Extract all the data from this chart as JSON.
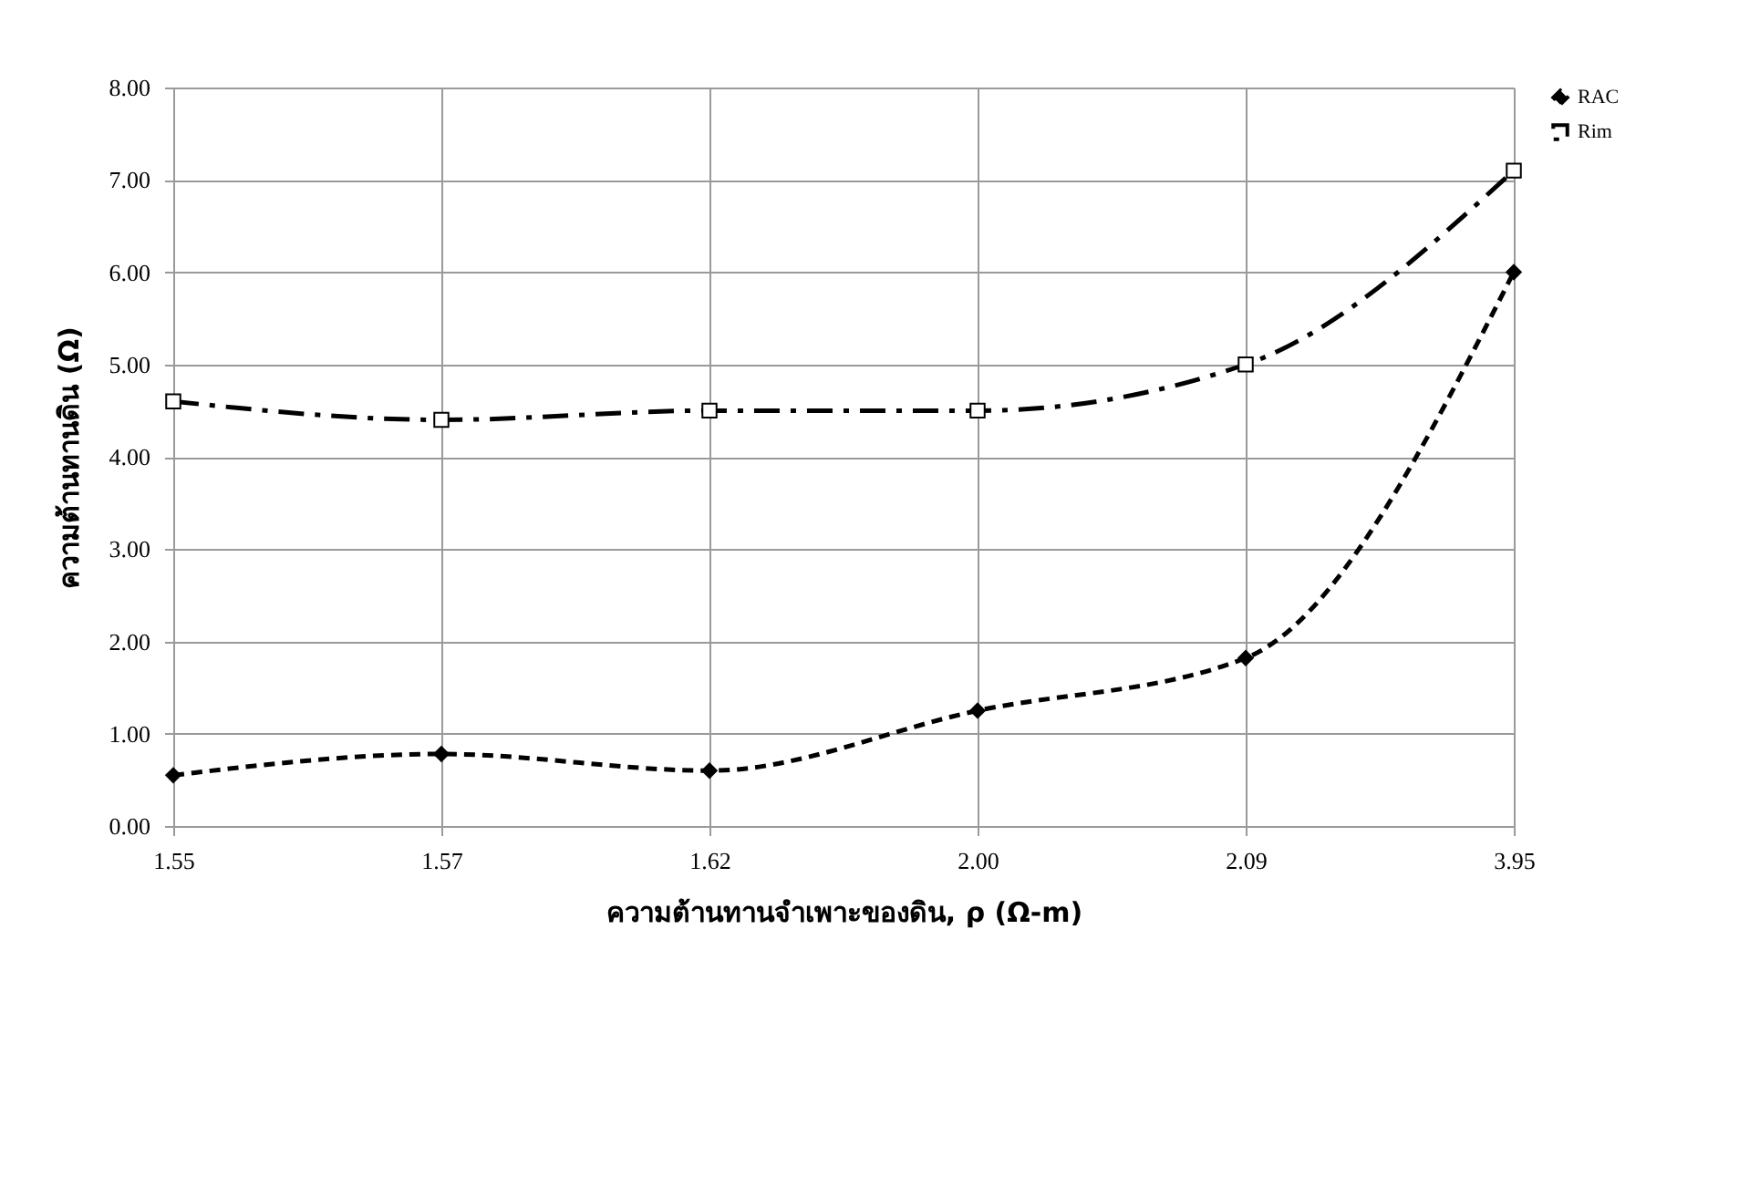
{
  "chart_data": {
    "type": "line",
    "xlabel": "ความต้านทานจำเพาะของดิน, ρ (Ω-m)",
    "ylabel": "ความต้านทานดิน (Ω)",
    "categories": [
      "1.55",
      "1.57",
      "1.62",
      "2.00",
      "2.09",
      "3.95"
    ],
    "series": [
      {
        "name": "RAC",
        "color": "#000000",
        "marker": "diamond",
        "line_style": "dashed",
        "values": [
          0.55,
          0.78,
          0.6,
          1.25,
          1.82,
          6.0
        ]
      },
      {
        "name": "Rim",
        "color": "#000000",
        "marker": "square",
        "line_style": "dashdot",
        "values": [
          4.6,
          4.4,
          4.5,
          4.5,
          5.0,
          7.1
        ]
      }
    ],
    "ylim": [
      0,
      8
    ],
    "yticks": [
      {
        "value": 0,
        "label": "0.00"
      },
      {
        "value": 1,
        "label": "1.00"
      },
      {
        "value": 2,
        "label": "2.00"
      },
      {
        "value": 3,
        "label": "3.00"
      },
      {
        "value": 4,
        "label": "4.00"
      },
      {
        "value": 5,
        "label": "5.00"
      },
      {
        "value": 6,
        "label": "6.00"
      },
      {
        "value": 7,
        "label": "7.00"
      },
      {
        "value": 8,
        "label": "8.00"
      }
    ],
    "grid": true,
    "legend": "right"
  }
}
